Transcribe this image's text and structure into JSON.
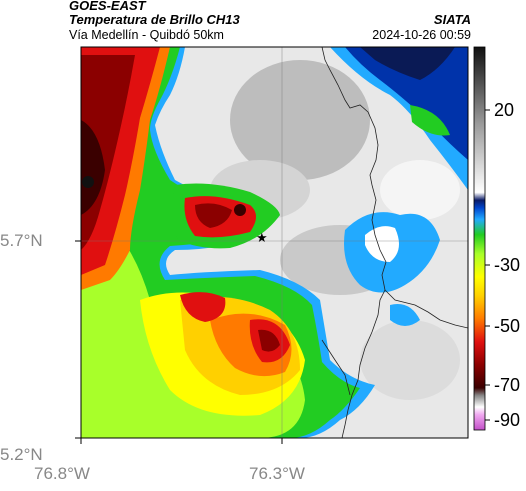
{
  "header": {
    "satellite": "GOES-EAST",
    "product": "Temperatura de Brillo CH13",
    "route": "Vía Medellín - Quibdó 50km",
    "org": "SIATA",
    "timestamp": "2024-10-26 00:59"
  },
  "axes": {
    "lat_labels": [
      "5.7°N",
      "5.2°N"
    ],
    "lon_labels": [
      "76.8°W",
      "76.3°W"
    ]
  },
  "colorbar": {
    "ticks": [
      "20",
      "-30",
      "-50",
      "-70",
      "-90"
    ]
  },
  "marker": {
    "symbol": "★"
  }
}
